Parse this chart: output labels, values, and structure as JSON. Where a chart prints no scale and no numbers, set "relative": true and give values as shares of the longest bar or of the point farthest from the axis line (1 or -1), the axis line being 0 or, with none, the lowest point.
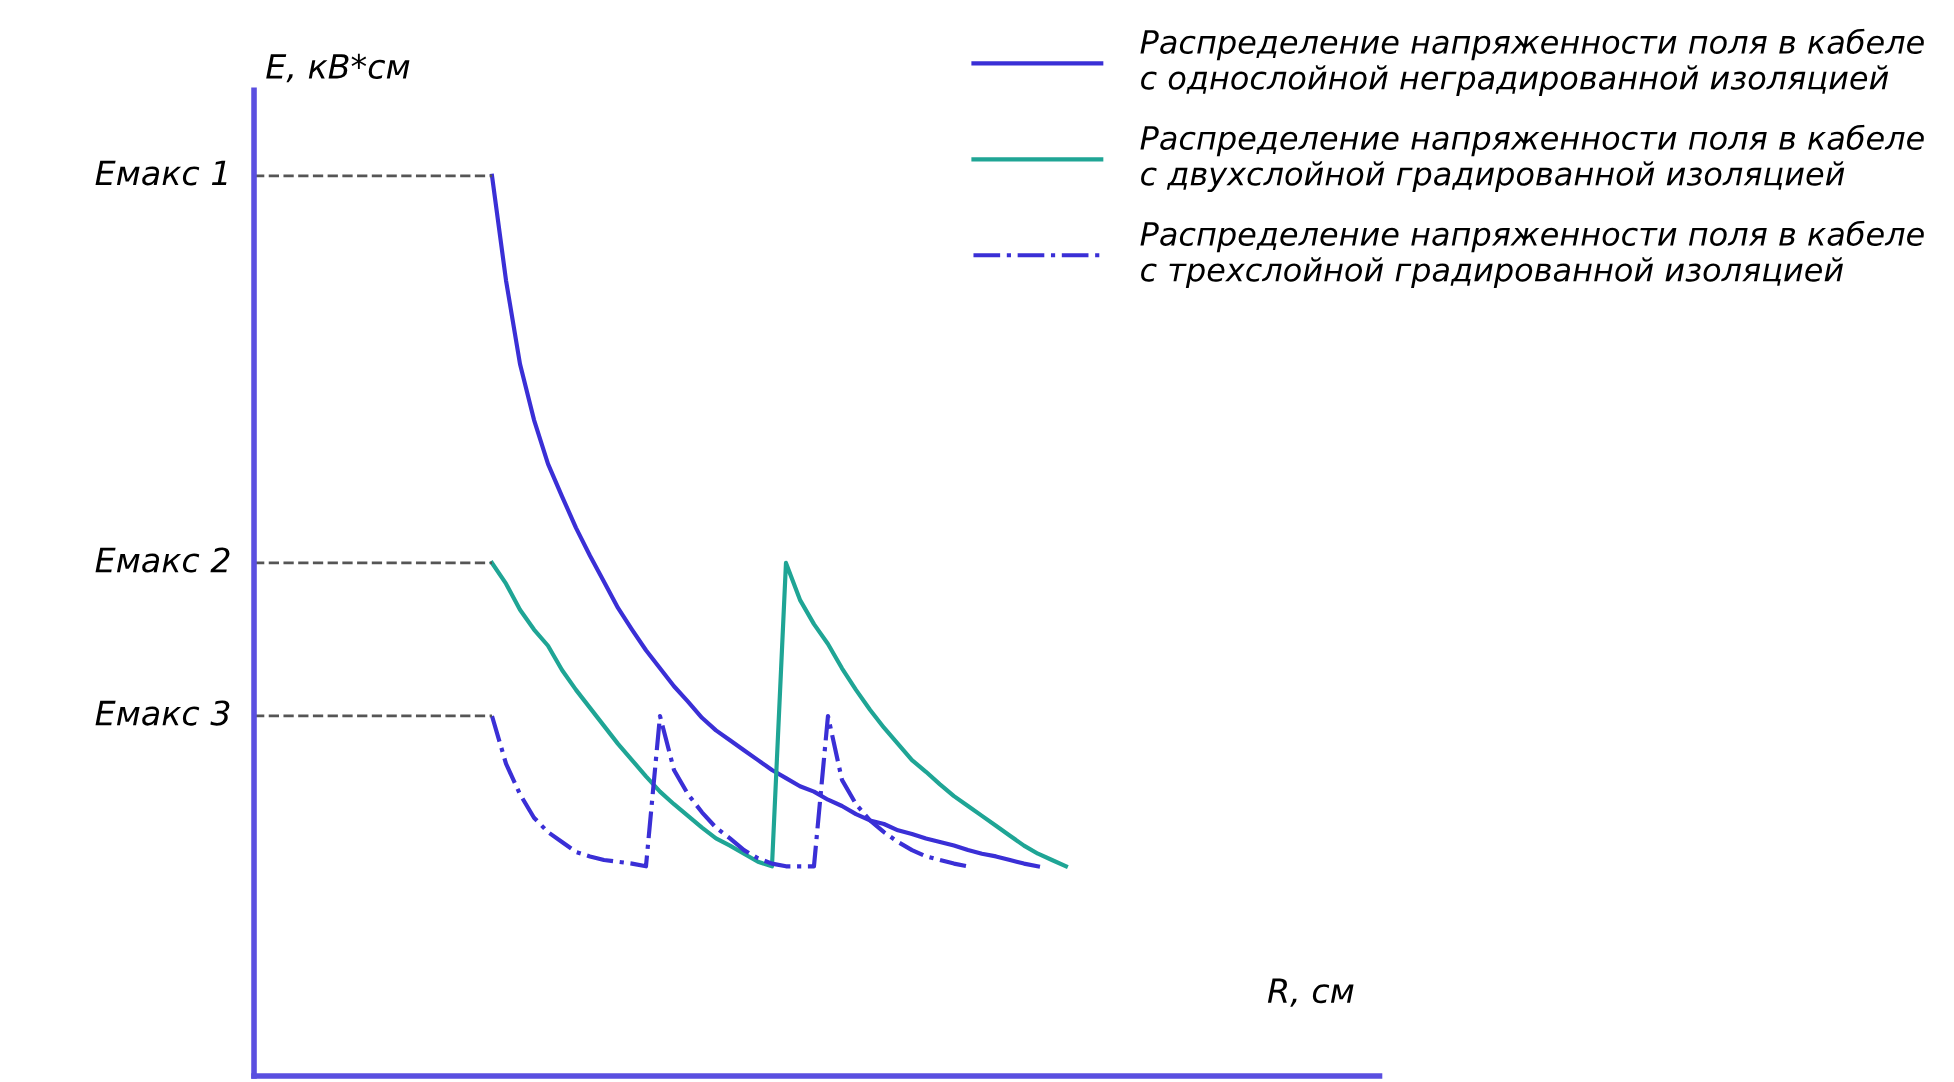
{
  "chart_data": {
    "type": "line",
    "relative": true,
    "xlabel": "R, см",
    "ylabel": "E, кВ*см",
    "legend": "top right",
    "categories": [
      null,
      null,
      null,
      null,
      null,
      null,
      null,
      null,
      null,
      null,
      null,
      null,
      null,
      null,
      null,
      null,
      null,
      null,
      null,
      null,
      null,
      null,
      null,
      null,
      null,
      null,
      null,
      null,
      null,
      null,
      null,
      null,
      null,
      null,
      null,
      null,
      null,
      null,
      null,
      null,
      null,
      null,
      null,
      null,
      null,
      null,
      null,
      null,
      null,
      null,
      null,
      null,
      null,
      null,
      null,
      null,
      null,
      null,
      null,
      null,
      null,
      null,
      null,
      null,
      null,
      null,
      null,
      null,
      null,
      null,
      null,
      null,
      null,
      null,
      null,
      null,
      null,
      null,
      null,
      null,
      null
    ],
    "series": [
      {
        "name": "Распределение напряженности поля в кабеле\nс однослойной неградированной изоляцией",
        "color": "#3a2fd6",
        "line_style": "solid",
        "values": [
          null,
          null,
          null,
          null,
          null,
          null,
          null,
          null,
          null,
          null,
          null,
          null,
          null,
          null,
          null,
          null,
          null,
          1.0,
          0.884,
          0.791,
          0.729,
          0.68,
          0.644,
          0.609,
          0.578,
          0.549,
          0.52,
          0.496,
          0.473,
          0.453,
          0.433,
          0.416,
          0.398,
          0.384,
          0.373,
          0.362,
          0.351,
          0.34,
          0.331,
          0.322,
          0.316,
          0.307,
          0.3,
          0.291,
          0.284,
          0.28,
          0.273,
          0.269,
          0.264,
          0.26,
          0.256,
          0.251,
          0.247,
          0.244,
          0.24,
          0.236,
          0.233,
          null,
          null,
          null,
          null,
          null,
          null,
          null,
          null,
          null,
          null,
          null,
          null,
          null,
          null,
          null,
          null,
          null,
          null,
          null,
          null,
          null,
          null,
          null,
          null
        ]
      },
      {
        "name": "Распределение напряженности поля в кабеле\nс двухслойной градированной изоляцией",
        "color": "#1fa595",
        "line_style": "solid",
        "values": [
          null,
          null,
          null,
          null,
          null,
          null,
          null,
          null,
          null,
          null,
          null,
          null,
          null,
          null,
          null,
          null,
          null,
          0.57,
          0.547,
          0.518,
          0.496,
          0.478,
          0.451,
          0.429,
          0.409,
          0.389,
          0.369,
          0.351,
          0.333,
          0.316,
          0.302,
          0.289,
          0.276,
          0.264,
          0.256,
          0.247,
          0.238,
          0.233,
          0.57,
          0.529,
          0.502,
          0.48,
          0.453,
          0.429,
          0.407,
          0.387,
          0.369,
          0.351,
          0.338,
          0.324,
          0.311,
          0.3,
          0.289,
          0.278,
          0.267,
          0.256,
          0.247,
          0.24,
          0.233,
          null,
          null,
          null,
          null,
          null,
          null,
          null,
          null,
          null,
          null,
          null,
          null,
          null,
          null,
          null,
          null,
          null,
          null,
          null,
          null,
          null,
          null
        ]
      },
      {
        "name": "Распределение напряженности поля в кабеле\nс трехслойной градированной изоляцией",
        "color": "#3a2fd6",
        "line_style": "dashdot",
        "values": [
          null,
          null,
          null,
          null,
          null,
          null,
          null,
          null,
          null,
          null,
          null,
          null,
          null,
          null,
          null,
          null,
          null,
          0.4,
          0.347,
          0.313,
          0.287,
          0.271,
          0.26,
          0.249,
          0.244,
          0.24,
          0.238,
          0.236,
          0.233,
          0.4,
          0.34,
          0.313,
          0.293,
          0.276,
          0.264,
          0.251,
          0.242,
          0.236,
          0.233,
          0.233,
          0.233,
          0.4,
          0.329,
          0.302,
          0.284,
          0.271,
          0.26,
          0.251,
          0.244,
          0.24,
          0.236,
          0.233,
          null,
          null,
          null,
          null,
          null,
          null,
          null,
          null,
          null,
          null,
          null,
          null,
          null,
          null,
          null,
          null,
          null,
          null,
          null,
          null,
          null,
          null,
          null,
          null,
          null,
          null,
          null,
          null,
          null
        ]
      }
    ],
    "ref_lines": [
      {
        "axis": "y",
        "value": 1.0,
        "label": "Емакс 1",
        "color": "#555555",
        "line_style": "dashed"
      },
      {
        "axis": "y",
        "value": 0.57,
        "label": "Емакс 2",
        "color": "#555555",
        "line_style": "dashed"
      },
      {
        "axis": "y",
        "value": 0.4,
        "label": "Емакс 3",
        "color": "#555555",
        "line_style": "dashed"
      }
    ]
  }
}
